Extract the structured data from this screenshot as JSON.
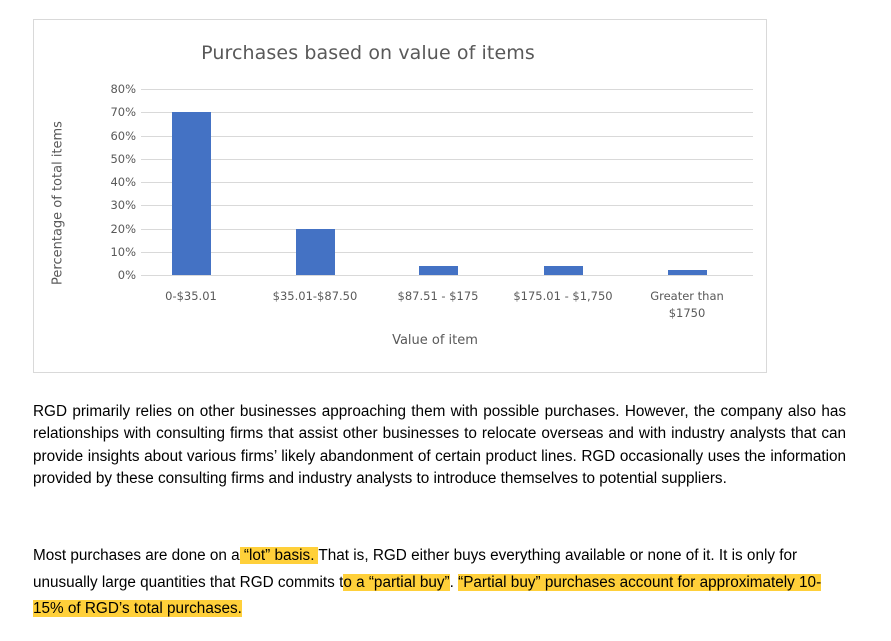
{
  "chart_data": {
    "type": "bar",
    "title": "Purchases based on value of items",
    "xlabel": "Value of item",
    "ylabel": "Percentage of total items",
    "categories": [
      "0-$35.01",
      "$35.01-$87.50",
      "$87.51 - $175",
      "$175.01 - $1,750",
      "Greater than $1750"
    ],
    "values": [
      70,
      20,
      4,
      4,
      2
    ],
    "value_unit": "%",
    "ylim": [
      0,
      80
    ],
    "yticks": [
      "0%",
      "10%",
      "20%",
      "30%",
      "40%",
      "50%",
      "60%",
      "70%",
      "80%"
    ],
    "grid": true,
    "legend": "none",
    "bar_color": "#4472c4"
  },
  "chart": {
    "title": "Purchases based on value of items",
    "y_axis_title": "Percentage of total items",
    "x_axis_title": "Value of item",
    "y_ticks": [
      "80%",
      "70%",
      "60%",
      "50%",
      "40%",
      "30%",
      "20%",
      "10%",
      "0%"
    ],
    "categories": [
      {
        "line1": "0-$35.01",
        "line2": ""
      },
      {
        "line1": "$35.01-$87.50",
        "line2": ""
      },
      {
        "line1": "$87.51 - $175",
        "line2": ""
      },
      {
        "line1": "$175.01 - $1,750",
        "line2": ""
      },
      {
        "line1": "Greater than",
        "line2": "$1750"
      }
    ]
  },
  "document": {
    "paragraph1": "RGD primarily relies on other businesses approaching them with possible purchases. However, the company also has relationships with consulting firms that assist other businesses to relocate overseas and with industry analysts that can provide insights about various firms’ likely abandonment of certain product lines. RGD occasionally uses the information provided by these consulting firms and industry analysts to introduce themselves to potential suppliers.",
    "paragraph2": {
      "seg1": "Most purchases are done on a",
      "hl1": " “lot” basis. ",
      "seg2": "That is, RGD either buys everything available or none of it. It is only for unusually large quantities that RGD commits t",
      "hl2": "o a “partial buy”",
      "seg3": ". ",
      "hl3": "“Partial buy” purchases account for approximately 10-15% of RGD’s total purchases."
    },
    "highlight_color": "#ffd03a"
  }
}
